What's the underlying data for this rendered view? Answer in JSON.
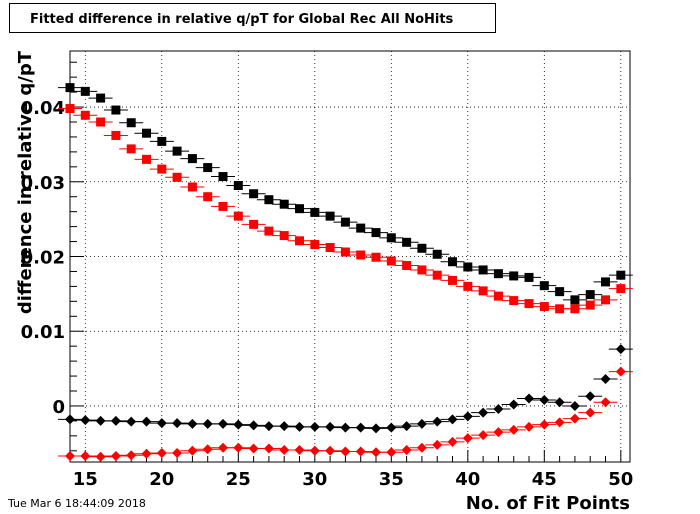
{
  "chart_data": {
    "type": "scatter",
    "title": "Fitted difference in relative q/pT  for Global Rec All NoHits",
    "xlabel": "No. of Fit Points",
    "ylabel": "difference in relative q/pT",
    "xlim": [
      14,
      50.6
    ],
    "ylim": [
      -0.0075,
      0.0475
    ],
    "x_ticks": [
      15,
      20,
      25,
      30,
      35,
      40,
      45,
      50
    ],
    "y_ticks": [
      0,
      0.01,
      0.02,
      0.03,
      0.04
    ],
    "x_tick_labels": [
      "15",
      "20",
      "25",
      "30",
      "35",
      "40",
      "45",
      "50"
    ],
    "y_tick_labels": [
      "0",
      "0.01",
      "0.02",
      "0.03",
      "0.04"
    ],
    "grid": true,
    "x": [
      14,
      15,
      16,
      17,
      18,
      19,
      20,
      21,
      22,
      23,
      24,
      25,
      26,
      27,
      28,
      29,
      30,
      31,
      32,
      33,
      34,
      35,
      36,
      37,
      38,
      39,
      40,
      41,
      42,
      43,
      44,
      45,
      46,
      47,
      48,
      49,
      50
    ],
    "series": [
      {
        "marker": "square",
        "color": "#000000",
        "values": [
          0.0426,
          0.0421,
          0.0412,
          0.0396,
          0.0379,
          0.0365,
          0.0354,
          0.0341,
          0.0331,
          0.0319,
          0.0307,
          0.0295,
          0.0284,
          0.0276,
          0.027,
          0.0264,
          0.0259,
          0.0254,
          0.0246,
          0.0238,
          0.0232,
          0.0225,
          0.0219,
          0.0211,
          0.0203,
          0.0193,
          0.0186,
          0.0182,
          0.0177,
          0.0174,
          0.0172,
          0.0161,
          0.0153,
          0.0142,
          0.0149,
          0.0166,
          0.0175
        ]
      },
      {
        "marker": "square",
        "color": "#ff0000",
        "values": [
          0.0398,
          0.0389,
          0.038,
          0.0362,
          0.0344,
          0.033,
          0.0317,
          0.0306,
          0.0293,
          0.028,
          0.0267,
          0.0254,
          0.0243,
          0.0234,
          0.0228,
          0.0221,
          0.0216,
          0.0212,
          0.0206,
          0.0202,
          0.0199,
          0.0194,
          0.0188,
          0.0182,
          0.0175,
          0.0168,
          0.016,
          0.0154,
          0.0147,
          0.0141,
          0.0137,
          0.0133,
          0.013,
          0.013,
          0.0135,
          0.0142,
          0.0157
        ]
      },
      {
        "marker": "diamond",
        "color": "#000000",
        "values": [
          -0.0018,
          -0.0019,
          -0.002,
          -0.002,
          -0.0021,
          -0.0021,
          -0.0023,
          -0.0023,
          -0.0024,
          -0.0024,
          -0.0024,
          -0.0025,
          -0.0026,
          -0.0027,
          -0.0027,
          -0.0028,
          -0.0028,
          -0.0028,
          -0.0029,
          -0.0029,
          -0.003,
          -0.0029,
          -0.0027,
          -0.0024,
          -0.0021,
          -0.0018,
          -0.0014,
          -0.0009,
          -0.0004,
          0.0002,
          0.001,
          0.0008,
          0.0005,
          0.0,
          0.0013,
          0.0036,
          0.0076
        ]
      },
      {
        "marker": "diamond",
        "color": "#ff0000",
        "values": [
          -0.0067,
          -0.0067,
          -0.0068,
          -0.0067,
          -0.0066,
          -0.0064,
          -0.0063,
          -0.0063,
          -0.006,
          -0.0058,
          -0.0056,
          -0.0056,
          -0.0057,
          -0.0057,
          -0.0059,
          -0.0059,
          -0.006,
          -0.006,
          -0.0061,
          -0.0061,
          -0.0062,
          -0.0062,
          -0.0059,
          -0.0056,
          -0.0052,
          -0.0048,
          -0.0043,
          -0.0039,
          -0.0035,
          -0.0032,
          -0.0028,
          -0.0025,
          -0.0022,
          -0.0017,
          -0.0009,
          0.0005,
          0.0046
        ]
      }
    ]
  },
  "footer": {
    "timestamp": "Tue Mar  6 18:44:09 2018"
  }
}
